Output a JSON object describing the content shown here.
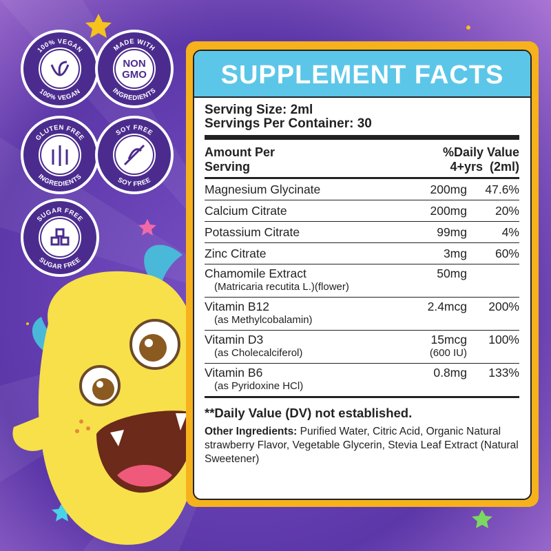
{
  "badges": [
    {
      "top": "100% VEGAN",
      "bottom": "100% VEGAN"
    },
    {
      "top": "MADE WITH",
      "center": [
        "NON",
        "GMO"
      ],
      "bottom": "INGREDIENTS"
    },
    {
      "top": "GLUTEN FREE",
      "bottom": "INGREDIENTS"
    },
    {
      "top": "SOY FREE",
      "bottom": "SOY FREE"
    },
    {
      "top": "SUGAR FREE",
      "bottom": "SUGAR FREE"
    }
  ],
  "facts": {
    "title": "SUPPLEMENT FACTS",
    "serving_size": "Serving Size: 2ml",
    "servings_per_container": "Servings Per Container: 30",
    "header": {
      "left": [
        "Amount Per",
        "Serving"
      ],
      "right": [
        "%Daily Value",
        "4+yrs  (2ml)"
      ]
    },
    "rows": [
      {
        "name": "Magnesium Glycinate",
        "amount": "200mg",
        "dv": "47.6%"
      },
      {
        "name": "Calcium Citrate",
        "amount": "200mg",
        "dv": "20%"
      },
      {
        "name": "Potassium Citrate",
        "amount": "99mg",
        "dv": "4%"
      },
      {
        "name": "Zinc Citrate",
        "amount": "3mg",
        "dv": "60%"
      },
      {
        "name": "Chamomile Extract",
        "sub": "(Matricaria recutita L.)(flower)",
        "amount": "50mg"
      },
      {
        "name": "Vitamin B12",
        "sub": "(as Methylcobalamin)",
        "amount": "2.4mcg",
        "dv": "200%"
      },
      {
        "name": "Vitamin D3",
        "sub": "(as Cholecalciferol)",
        "amount": "15mcg",
        "amount_sub": "(600 IU)",
        "dv": "100%"
      },
      {
        "name": "Vitamin B6",
        "sub": "(as Pyridoxine HCl)",
        "amount": "0.8mg",
        "dv": "133%"
      }
    ],
    "footnote": "**Daily Value (DV) not established.",
    "other_label": "Other Ingredients:",
    "other_text": "Purified Water, Citric Acid, Organic Natural strawberry Flavor, Vegetable Glycerin, Stevia Leaf Extract (Natural Sweetener)"
  }
}
